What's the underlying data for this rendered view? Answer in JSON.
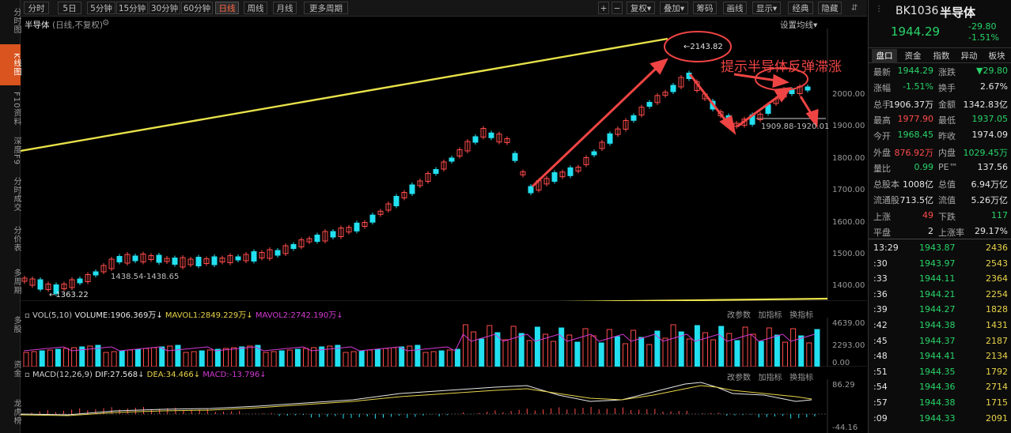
{
  "left_nav": [
    {
      "label": "分时图",
      "active": false
    },
    {
      "label": "K线图",
      "active": true
    },
    {
      "label": "F10资料",
      "active": false
    },
    {
      "label": "深度F9",
      "active": false
    },
    {
      "label": "分时成交",
      "active": false
    },
    {
      "label": "分价表",
      "active": false
    },
    {
      "label": "多周期",
      "active": false
    },
    {
      "label": "多股",
      "active": false
    },
    {
      "label": "资金",
      "active": false
    },
    {
      "label": "龙虎榜",
      "active": false
    }
  ],
  "toolbar": {
    "periods": [
      "分时",
      "5日",
      "5分钟",
      "15分钟",
      "30分钟",
      "60分钟",
      "日线",
      "周线",
      "月线",
      "更多周期"
    ],
    "active_period": "日线",
    "tools": [
      "复权",
      "叠加",
      "筹码",
      "画线",
      "显示",
      "经典",
      "隐藏"
    ],
    "plus": "+",
    "minus": "−"
  },
  "chart": {
    "title": "半导体",
    "subtitle": "(日线,不复权)",
    "settings": "设置均线",
    "y_ticks": [
      "2000.00",
      "1900.00",
      "1800.00",
      "1700.00",
      "1600.00",
      "1500.00",
      "1400.00"
    ],
    "high_label": "2143.82",
    "low_label": "1363.22",
    "range_label": "1438.54-1438.65",
    "line_label": "1909.88-1920.01",
    "annotation": "提示半导体反弹滞涨",
    "colors": {
      "up": "#ff4b4b",
      "down": "#22e0f0",
      "trend": "#e8e24a",
      "arrow": "#ef4444"
    }
  },
  "vol": {
    "label": "VOL(5,10)",
    "volume": "VOLUME:1906.369万",
    "mavol1": "MAVOL1:2849.229万",
    "mavol2": "MAVOL2:2742.190万",
    "ticks": [
      "4639.00",
      "2293.00",
      "0.00"
    ],
    "btns": [
      "改参数",
      "加指标",
      "换指标"
    ]
  },
  "macd": {
    "label": "MACD(12,26,9)",
    "dif": "DIF:27.568",
    "dea": "DEA:34.466",
    "macd": "MACD:-13.796",
    "ticks": [
      "86.29",
      "-44.16"
    ],
    "btns": [
      "改参数",
      "加指标",
      "换指标"
    ]
  },
  "right": {
    "code": "BK1036",
    "name": "半导体",
    "price": "1944.29",
    "change": "-29.80",
    "pct": "-1.51%",
    "tabs": [
      "盘口",
      "资金",
      "指数",
      "异动",
      "板块"
    ],
    "rows": [
      {
        "k1": "最新",
        "v1": "1944.29",
        "c1": "green",
        "k2": "涨跌",
        "v2": "▼29.80",
        "c2": "green"
      },
      {
        "k1": "涨幅",
        "v1": "-1.51%",
        "c1": "green",
        "k2": "换手",
        "v2": "2.67%",
        "c2": "white"
      },
      {
        "k1": "总手",
        "v1": "1906.37万",
        "c1": "white",
        "k2": "金额",
        "v2": "1342.83亿",
        "c2": "white"
      },
      {
        "k1": "最高",
        "v1": "1977.90",
        "c1": "red",
        "k2": "最低",
        "v2": "1937.05",
        "c2": "green"
      },
      {
        "k1": "今开",
        "v1": "1968.45",
        "c1": "green",
        "k2": "昨收",
        "v2": "1974.09",
        "c2": "white"
      },
      {
        "k1": "外盘",
        "v1": "876.92万",
        "c1": "red",
        "k2": "内盘",
        "v2": "1029.45万",
        "c2": "green"
      },
      {
        "k1": "量比",
        "v1": "0.99",
        "c1": "green",
        "k2": "PE™",
        "v2": "137.56",
        "c2": "white"
      },
      {
        "k1": "总股本",
        "v1": "1008亿",
        "c1": "white",
        "k2": "总值",
        "v2": "6.94万亿",
        "c2": "white"
      },
      {
        "k1": "流通股",
        "v1": "713.5亿",
        "c1": "white",
        "k2": "流值",
        "v2": "5.26万亿",
        "c2": "white"
      },
      {
        "k1": "上涨",
        "v1": "49",
        "c1": "red",
        "k2": "下跌",
        "v2": "117",
        "c2": "green"
      },
      {
        "k1": "平盘",
        "v1": "2",
        "c1": "white",
        "k2": "上涨率",
        "v2": "29.17%",
        "c2": "white"
      }
    ],
    "ticks": [
      {
        "t": "13:29",
        "p": "1943.87",
        "v": "2436"
      },
      {
        "t": ":30",
        "p": "1943.97",
        "v": "2543"
      },
      {
        "t": ":33",
        "p": "1944.11",
        "v": "2364"
      },
      {
        "t": ":36",
        "p": "1944.21",
        "v": "2254"
      },
      {
        "t": ":39",
        "p": "1944.27",
        "v": "1828"
      },
      {
        "t": ":42",
        "p": "1944.38",
        "v": "1431"
      },
      {
        "t": ":45",
        "p": "1944.37",
        "v": "2187"
      },
      {
        "t": ":48",
        "p": "1944.41",
        "v": "2134"
      },
      {
        "t": ":51",
        "p": "1944.35",
        "v": "1792"
      },
      {
        "t": ":54",
        "p": "1944.36",
        "v": "2714"
      },
      {
        "t": ":57",
        "p": "1944.38",
        "v": "1715"
      },
      {
        "t": ":09",
        "p": "1944.33",
        "v": "2091"
      }
    ]
  }
}
